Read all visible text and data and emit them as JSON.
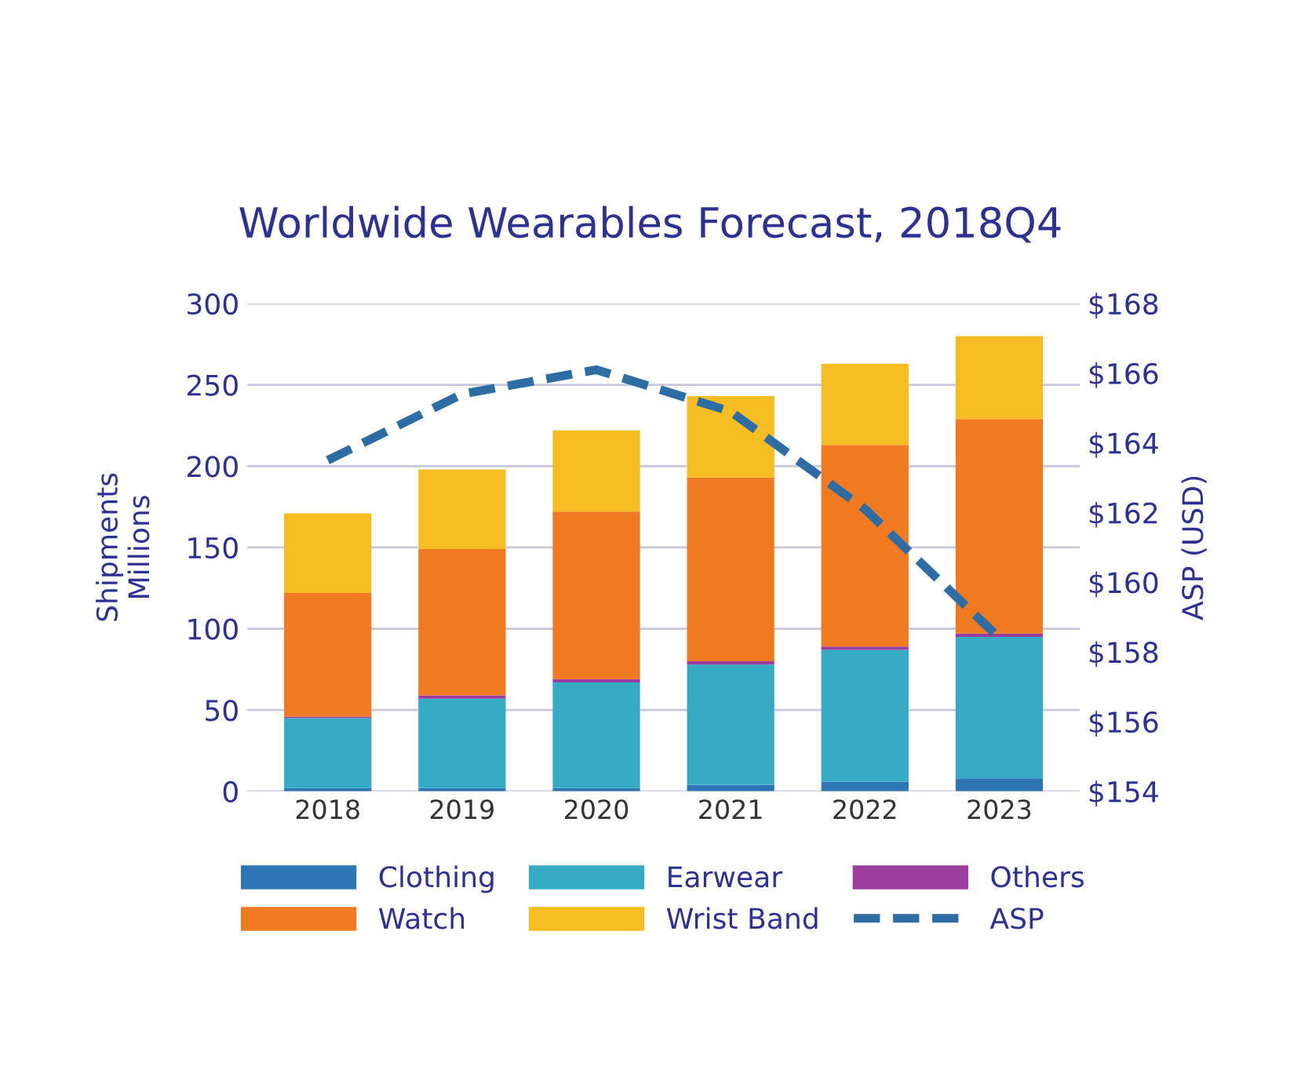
{
  "chart_data": {
    "type": "bar",
    "title": "Worldwide Wearables Forecast, 2018Q4",
    "ylabel": "Shipments\nMillions",
    "y2label": "ASP (USD)",
    "categories": [
      "2018",
      "2019",
      "2020",
      "2021",
      "2022",
      "2023"
    ],
    "stacked": true,
    "series": [
      {
        "name": "Clothing",
        "color": "#2e75b6",
        "values": [
          2,
          2,
          2,
          4,
          6,
          8
        ]
      },
      {
        "name": "Earwear",
        "color": "#36abc6",
        "values": [
          43,
          55,
          65,
          74,
          81,
          87
        ]
      },
      {
        "name": "Others",
        "color": "#9b3c9e",
        "values": [
          1,
          2,
          2,
          2,
          2,
          2
        ]
      },
      {
        "name": "Watch",
        "color": "#f07a21",
        "values": [
          76,
          90,
          103,
          113,
          124,
          132
        ]
      },
      {
        "name": "Wrist Band",
        "color": "#f5bd22",
        "values": [
          49,
          49,
          50,
          50,
          50,
          51
        ]
      },
      {
        "name": "ASP",
        "type": "line",
        "axis": "y2",
        "color": "#2e6ca4",
        "line_style": "dashed",
        "values": [
          163.5,
          165.4,
          166.1,
          164.9,
          162.1,
          158.4
        ]
      }
    ],
    "ylim": [
      0,
      300
    ],
    "yticks": [
      0,
      50,
      100,
      150,
      200,
      250,
      300
    ],
    "y2lim": [
      154,
      168
    ],
    "y2ticks": [
      {
        "value": 154,
        "label": "$154"
      },
      {
        "value": 156,
        "label": "$156"
      },
      {
        "value": 158,
        "label": "$158"
      },
      {
        "value": 160,
        "label": "$160"
      },
      {
        "value": 162,
        "label": "$162"
      },
      {
        "value": 164,
        "label": "$164"
      },
      {
        "value": 166,
        "label": "$166"
      },
      {
        "value": 168,
        "label": "$168"
      }
    ],
    "grid": "y",
    "legend": "bottom"
  }
}
